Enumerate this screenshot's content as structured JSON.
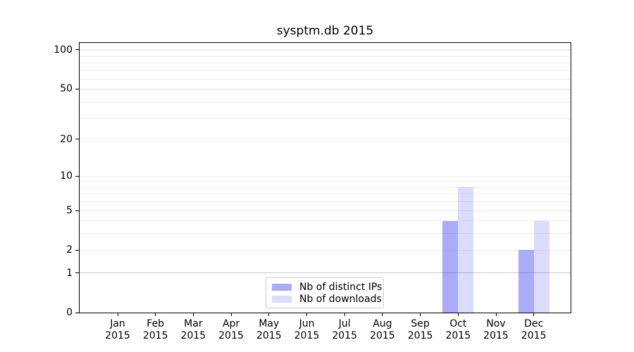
{
  "figure": {
    "background": "#ffffff",
    "spine_color": "#000000",
    "text_color": "#000000"
  },
  "chart_data": {
    "type": "bar",
    "title": "sysptm.db 2015",
    "x_ticks": [
      {
        "month": "Jan",
        "year": "2015"
      },
      {
        "month": "Feb",
        "year": "2015"
      },
      {
        "month": "Mar",
        "year": "2015"
      },
      {
        "month": "Apr",
        "year": "2015"
      },
      {
        "month": "May",
        "year": "2015"
      },
      {
        "month": "Jun",
        "year": "2015"
      },
      {
        "month": "Jul",
        "year": "2015"
      },
      {
        "month": "Aug",
        "year": "2015"
      },
      {
        "month": "Sep",
        "year": "2015"
      },
      {
        "month": "Oct",
        "year": "2015"
      },
      {
        "month": "Nov",
        "year": "2015"
      },
      {
        "month": "Dec",
        "year": "2015"
      }
    ],
    "series": [
      {
        "key": "distinct-ips",
        "name": "Nb of distinct IPs",
        "color": "rgba(10,10,245,0.34)",
        "values": [
          0,
          0,
          0,
          0,
          0,
          0,
          0,
          0,
          0,
          4,
          0,
          2
        ]
      },
      {
        "key": "downloads",
        "name": "Nb of downloads",
        "color": "rgba(10,10,245,0.14)",
        "values": [
          0,
          0,
          0,
          0,
          0,
          0,
          0,
          0,
          0,
          8,
          0,
          4
        ]
      }
    ],
    "y_axis": {
      "scale": "log10(1+v)",
      "tick_values": [
        0,
        1,
        2,
        5,
        10,
        20,
        50,
        100
      ],
      "tick_labels": [
        "0",
        "1",
        "2",
        "5",
        "10",
        "20",
        "50",
        "100"
      ],
      "min": 0,
      "max": 113
    },
    "grid": {
      "line_values": [
        1,
        2,
        3,
        4,
        5,
        6,
        7,
        8,
        9,
        10,
        19,
        20,
        29,
        39,
        49,
        50,
        59,
        69,
        79,
        89,
        99,
        100
      ],
      "emphasized_value": 1,
      "line_color": "#ededed",
      "emphasized_color": "#c8c8c8"
    },
    "legend": {
      "location": "lower center"
    }
  }
}
